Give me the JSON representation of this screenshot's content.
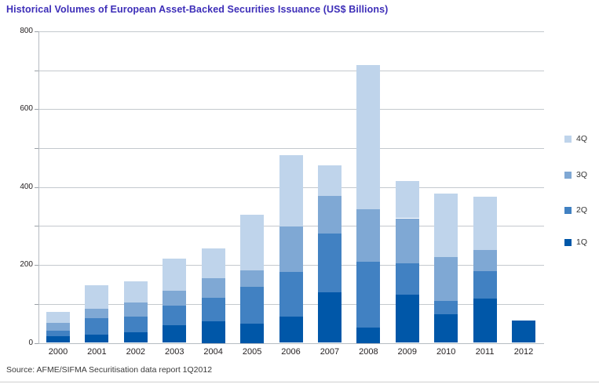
{
  "title": "Historical Volumes of European Asset-Backed Securities Issuance (US$ Billions)",
  "source": "Source: AFME/SIFMA Securitisation data report 1Q2012",
  "colors": {
    "title": "#3d2eb8",
    "q1": "#0057a8",
    "q2": "#4181c2",
    "q3": "#7fa8d4",
    "q4": "#bfd4eb",
    "grid": "#c4c9ce"
  },
  "legend": [
    {
      "label": "4Q",
      "color_key": "q4"
    },
    {
      "label": "3Q",
      "color_key": "q3"
    },
    {
      "label": "2Q",
      "color_key": "q2"
    },
    {
      "label": "1Q",
      "color_key": "q1"
    }
  ],
  "chart_data": {
    "type": "bar",
    "stacked": true,
    "title": "Historical Volumes of European Asset-Backed Securities Issuance (US$ Billions)",
    "categories": [
      "2000",
      "2001",
      "2002",
      "2003",
      "2004",
      "2005",
      "2006",
      "2007",
      "2008",
      "2009",
      "2010",
      "2011",
      "2012"
    ],
    "series": [
      {
        "name": "1Q",
        "color_key": "q1",
        "values": [
          18,
          21,
          27,
          46,
          55,
          50,
          68,
          129,
          40,
          123,
          74,
          113,
          58
        ]
      },
      {
        "name": "2Q",
        "color_key": "q2",
        "values": [
          13,
          42,
          40,
          50,
          60,
          94,
          114,
          152,
          169,
          82,
          34,
          72,
          0
        ]
      },
      {
        "name": "3Q",
        "color_key": "q3",
        "values": [
          20,
          25,
          37,
          38,
          51,
          42,
          117,
          97,
          134,
          115,
          112,
          54,
          0
        ]
      },
      {
        "name": "4Q",
        "color_key": "q4",
        "values": [
          28,
          59,
          53,
          82,
          77,
          144,
          184,
          77,
          370,
          96,
          164,
          136,
          0
        ]
      }
    ],
    "totals": [
      79,
      147,
      157,
      216,
      243,
      330,
      483,
      455,
      713,
      416,
      384,
      375,
      58
    ],
    "xlabel": "",
    "ylabel": "",
    "ylim": [
      0,
      800
    ],
    "yticks": [
      0,
      200,
      400,
      600,
      800
    ],
    "grid_interval": 100,
    "grid": true,
    "legend_position": "right"
  }
}
